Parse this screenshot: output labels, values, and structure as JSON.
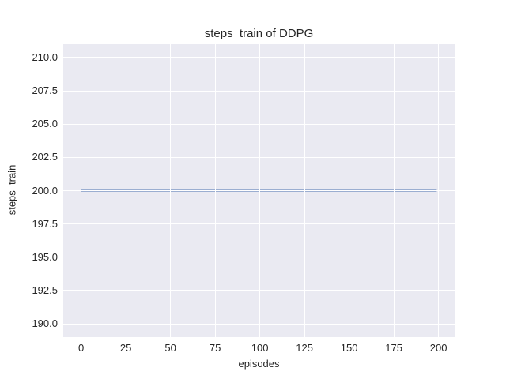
{
  "chart_data": {
    "type": "line",
    "title": "steps_train of DDPG",
    "xlabel": "episodes",
    "ylabel": "steps_train",
    "xlim": [
      -10,
      209
    ],
    "ylim": [
      189,
      211
    ],
    "x_ticks": [
      0,
      25,
      50,
      75,
      100,
      125,
      150,
      175,
      200
    ],
    "x_tick_labels": [
      "0",
      "25",
      "50",
      "75",
      "100",
      "125",
      "150",
      "175",
      "200"
    ],
    "y_ticks": [
      190.0,
      192.5,
      195.0,
      197.5,
      200.0,
      202.5,
      205.0,
      207.5,
      210.0
    ],
    "y_tick_labels": [
      "190.0",
      "192.5",
      "195.0",
      "197.5",
      "200.0",
      "202.5",
      "205.0",
      "207.5",
      "210.0"
    ],
    "grid": true,
    "legend": "none",
    "series": [
      {
        "name": "steps_train",
        "color": "#4c72b0",
        "x": [
          0,
          199
        ],
        "y": [
          200,
          200
        ]
      }
    ],
    "style": {
      "plot_bg": "#eaeaf2",
      "grid_color": "#ffffff",
      "text_color": "#262626",
      "figure_bg": "#ffffff",
      "line_width": 2
    }
  }
}
